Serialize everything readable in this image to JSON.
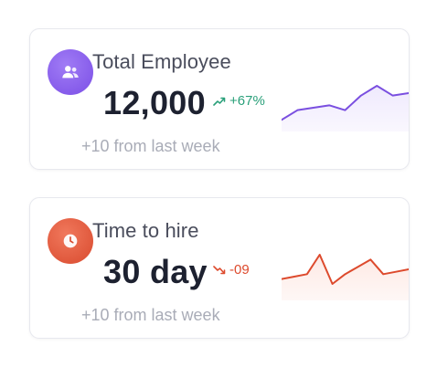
{
  "cards": [
    {
      "title": "Total Employee",
      "value": "12,000",
      "delta": "+67%",
      "delta_direction": "up",
      "subtext": "+10 from last week",
      "icon": "users-icon",
      "icon_bg": "#8a5cf0",
      "accent_color": "#7a4fe0",
      "fill_color": "#efe9fd",
      "delta_color": "#2aa07a",
      "chart_data": {
        "type": "area",
        "values": [
          2,
          4,
          4.5,
          5,
          4,
          7,
          9,
          7,
          7.5
        ],
        "ylim": [
          0,
          12
        ]
      }
    },
    {
      "title": "Time to hire",
      "value": "30 day",
      "delta": "-09",
      "delta_direction": "down",
      "subtext": "+10 from last week",
      "icon": "clock-icon",
      "icon_bg": "#e0553a",
      "accent_color": "#dd4a2d",
      "fill_color": "#fde9e4",
      "delta_color": "#dd4a2d",
      "chart_data": {
        "type": "area",
        "values": [
          4,
          4.5,
          5,
          9,
          3,
          5,
          6.5,
          8,
          5,
          5.5,
          6
        ],
        "ylim": [
          0,
          12
        ]
      }
    }
  ]
}
